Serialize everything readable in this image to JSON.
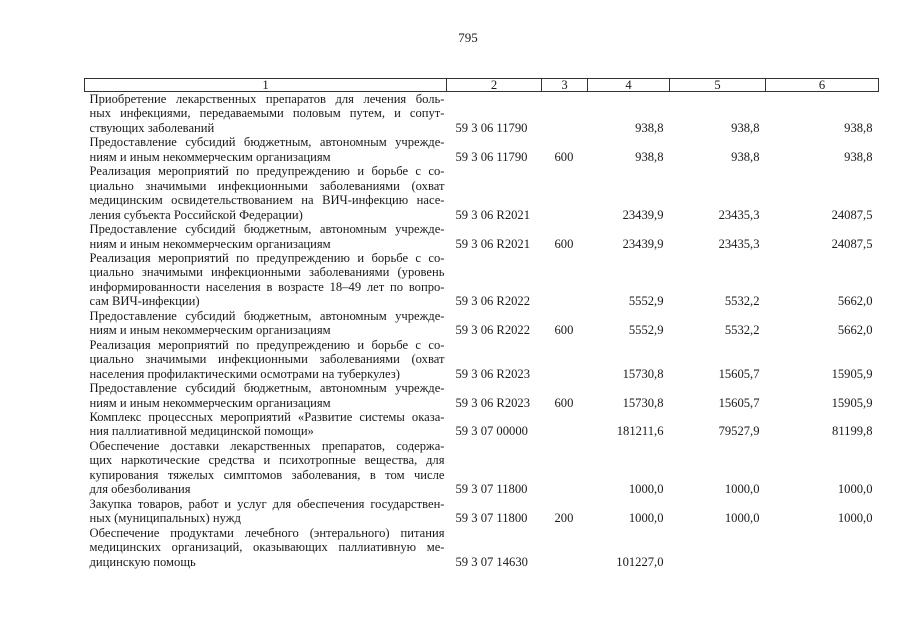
{
  "page_number": "795",
  "headers": [
    "1",
    "2",
    "3",
    "4",
    "5",
    "6"
  ],
  "rows": [
    {
      "lines": [
        "Приобретение лекарственных препаратов для лечения боль-",
        "ных инфекциями, передаваемыми половым путем, и сопут-",
        "ствующих заболеваний"
      ],
      "code": "59 3 06 11790",
      "vr": "",
      "v4": "938,8",
      "v5": "938,8",
      "v6": "938,8"
    },
    {
      "lines": [
        "Предоставление субсидий бюджетным, автономным учрежде-",
        "ниям и иным некоммерческим организациям"
      ],
      "code": "59 3 06 11790",
      "vr": "600",
      "v4": "938,8",
      "v5": "938,8",
      "v6": "938,8"
    },
    {
      "lines": [
        "Реализация мероприятий по предупреждению и борьбе с со-",
        "циально значимыми инфекционными заболеваниями (охват",
        "медицинским освидетельствованием на ВИЧ-инфекцию насе-",
        "ления субъекта Российской Федерации)"
      ],
      "code": "59 3 06 R2021",
      "vr": "",
      "v4": "23439,9",
      "v5": "23435,3",
      "v6": "24087,5"
    },
    {
      "lines": [
        "Предоставление субсидий бюджетным, автономным учрежде-",
        "ниям и иным некоммерческим организациям"
      ],
      "code": "59 3 06 R2021",
      "vr": "600",
      "v4": "23439,9",
      "v5": "23435,3",
      "v6": "24087,5"
    },
    {
      "lines": [
        "Реализация мероприятий по предупреждению и борьбе с со-",
        "циально значимыми инфекционными заболеваниями (уровень",
        "информированности населения в возрасте 18–49 лет по вопро-",
        "сам ВИЧ-инфекции)"
      ],
      "code": "59 3 06 R2022",
      "vr": "",
      "v4": "5552,9",
      "v5": "5532,2",
      "v6": "5662,0"
    },
    {
      "lines": [
        "Предоставление субсидий бюджетным, автономным учрежде-",
        "ниям и иным некоммерческим организациям"
      ],
      "code": "59 3 06 R2022",
      "vr": "600",
      "v4": "5552,9",
      "v5": "5532,2",
      "v6": "5662,0"
    },
    {
      "lines": [
        "Реализация мероприятий по предупреждению и борьбе с со-",
        "циально значимыми инфекционными заболеваниями (охват",
        "населения профилактическими осмотрами на туберкулез)"
      ],
      "code": "59 3 06 R2023",
      "vr": "",
      "v4": "15730,8",
      "v5": "15605,7",
      "v6": "15905,9"
    },
    {
      "lines": [
        "Предоставление субсидий бюджетным, автономным учрежде-",
        "ниям и иным некоммерческим организациям"
      ],
      "code": "59 3 06 R2023",
      "vr": "600",
      "v4": "15730,8",
      "v5": "15605,7",
      "v6": "15905,9"
    },
    {
      "lines": [
        "Комплекс процессных мероприятий «Развитие системы оказа-",
        "ния паллиативной медицинской помощи»"
      ],
      "code": "59 3 07 00000",
      "vr": "",
      "v4": "181211,6",
      "v5": "79527,9",
      "v6": "81199,8"
    },
    {
      "lines": [
        "Обеспечение доставки лекарственных препаратов, содержа-",
        "щих наркотические средства и психотропные вещества, для",
        "купирования тяжелых симптомов заболевания, в том числе",
        "для обезболивания"
      ],
      "code": "59 3 07 11800",
      "vr": "",
      "v4": "1000,0",
      "v5": "1000,0",
      "v6": "1000,0"
    },
    {
      "lines": [
        "Закупка товаров, работ и услуг для обеспечения государствен-",
        "ных (муниципальных) нужд"
      ],
      "code": "59 3 07 11800",
      "vr": "200",
      "v4": "1000,0",
      "v5": "1000,0",
      "v6": "1000,0"
    },
    {
      "lines": [
        "Обеспечение продуктами лечебного (энтерального) питания",
        "медицинских организаций, оказывающих паллиативную ме-",
        "дицинскую помощь"
      ],
      "code": "59 3 07 14630",
      "vr": "",
      "v4": "101227,0",
      "v5": "",
      "v6": ""
    }
  ]
}
